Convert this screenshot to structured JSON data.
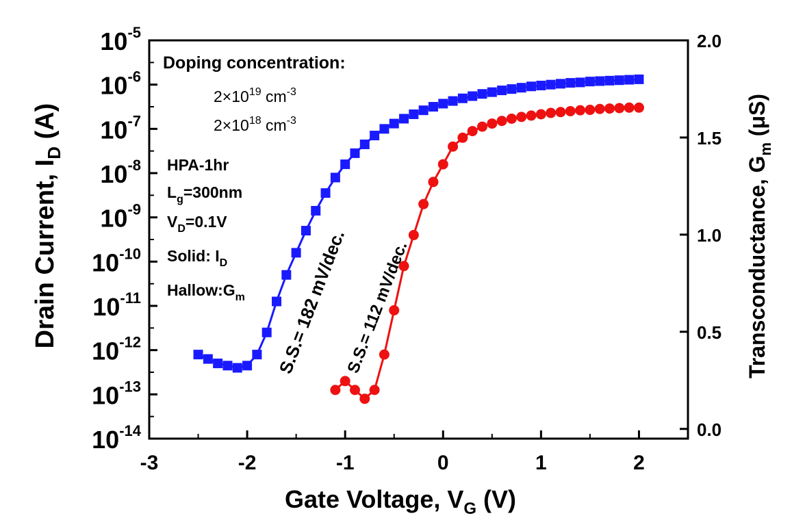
{
  "chart_data": {
    "type": "scatter",
    "xlabel_main": "Gate Voltage, V",
    "xlabel_sub": "G",
    "xlabel_unit": " (V)",
    "ylabel_main": "Drain Current, I",
    "ylabel_sub": "D",
    "ylabel_unit": " (A)",
    "y2label_main": "Transconductance, G",
    "y2label_sub": "m",
    "y2label_unit": " (μS)",
    "xlim": [
      -3,
      2.5
    ],
    "ylim_exp": [
      -14,
      -5
    ],
    "y_scale": "log",
    "y2lim": [
      -0.05,
      2.0
    ],
    "x_ticks": [
      "-3",
      "-2",
      "-1",
      "0",
      "1",
      "2"
    ],
    "x_tick_values": [
      -3,
      -2,
      -1,
      0,
      1,
      2
    ],
    "y_tick_exponents": [
      "-5",
      "-6",
      "-7",
      "-8",
      "-9",
      "-10",
      "-11",
      "-12",
      "-13",
      "-14"
    ],
    "y2_ticks": [
      "2.0",
      "1.5",
      "1.0",
      "0.5",
      "0.0"
    ],
    "y2_tick_values": [
      2.0,
      1.5,
      1.0,
      0.5,
      0.0
    ],
    "series": [
      {
        "color": "#1a1aff",
        "marker": "square",
        "x": [
          -2.5,
          -2.4,
          -2.3,
          -2.2,
          -2.1,
          -2.0,
          -1.9,
          -1.8,
          -1.7,
          -1.6,
          -1.5,
          -1.4,
          -1.3,
          -1.2,
          -1.1,
          -1.0,
          -0.9,
          -0.8,
          -0.7,
          -0.6,
          -0.5,
          -0.4,
          -0.3,
          -0.2,
          -0.1,
          0.0,
          0.1,
          0.2,
          0.3,
          0.4,
          0.5,
          0.6,
          0.7,
          0.8,
          0.9,
          1.0,
          1.1,
          1.2,
          1.3,
          1.4,
          1.5,
          1.6,
          1.7,
          1.8,
          1.9,
          2.0
        ],
        "y_log10": [
          -12.1,
          -12.2,
          -12.3,
          -12.35,
          -12.4,
          -12.35,
          -12.1,
          -11.6,
          -10.9,
          -10.3,
          -9.8,
          -9.3,
          -8.85,
          -8.45,
          -8.1,
          -7.8,
          -7.55,
          -7.35,
          -7.15,
          -7.0,
          -6.88,
          -6.77,
          -6.67,
          -6.58,
          -6.5,
          -6.43,
          -6.37,
          -6.31,
          -6.26,
          -6.21,
          -6.17,
          -6.13,
          -6.1,
          -6.07,
          -6.04,
          -6.02,
          -6.0,
          -5.98,
          -5.96,
          -5.95,
          -5.93,
          -5.92,
          -5.91,
          -5.9,
          -5.89,
          -5.88
        ]
      },
      {
        "color": "#ee1111",
        "marker": "circle",
        "x": [
          -1.1,
          -1.0,
          -0.9,
          -0.8,
          -0.7,
          -0.6,
          -0.5,
          -0.4,
          -0.3,
          -0.2,
          -0.1,
          0.0,
          0.1,
          0.2,
          0.3,
          0.4,
          0.5,
          0.6,
          0.7,
          0.8,
          0.9,
          1.0,
          1.1,
          1.2,
          1.3,
          1.4,
          1.5,
          1.6,
          1.7,
          1.8,
          1.9,
          2.0
        ],
        "y_log10": [
          -12.9,
          -12.7,
          -12.9,
          -13.1,
          -12.9,
          -12.1,
          -11.1,
          -10.1,
          -9.4,
          -8.7,
          -8.2,
          -7.8,
          -7.4,
          -7.2,
          -7.05,
          -6.95,
          -6.88,
          -6.82,
          -6.77,
          -6.73,
          -6.7,
          -6.67,
          -6.64,
          -6.62,
          -6.6,
          -6.58,
          -6.57,
          -6.55,
          -6.54,
          -6.53,
          -6.52,
          -6.52
        ]
      }
    ],
    "legend": {
      "doping_title": "Doping concentration:",
      "doping1_base": "2×10",
      "doping1_exp": "19",
      "doping1_unit": " cm",
      "doping1_unit_exp": "-3",
      "doping2_base": "2×10",
      "doping2_exp": "18",
      "doping2_unit": " cm",
      "doping2_unit_exp": "-3",
      "hpa": "HPA-1hr",
      "lg_main": "L",
      "lg_sub": "g",
      "lg_value": "=300nm",
      "vd_main": "V",
      "vd_sub": "D",
      "vd_value": "=0.1V",
      "solid_main": "Solid: I",
      "solid_sub": "D",
      "hallow_main": "Hallow:G",
      "hallow_sub": "m"
    },
    "annotations": {
      "ss_blue": "S.S.= 182 mV/dec.",
      "ss_red": "S.S.= 112 mV/dec."
    },
    "grid": false
  }
}
